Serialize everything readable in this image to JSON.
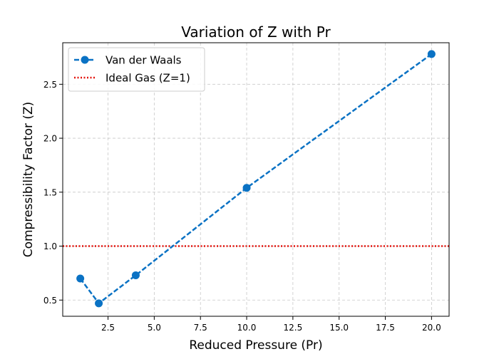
{
  "chart_data": {
    "type": "line",
    "title": "Variation of Z with Pr",
    "xlabel": "Reduced Pressure (Pr)",
    "ylabel": "Compressibility Factor (Z)",
    "xlim": [
      0.05,
      20.95
    ],
    "ylim": [
      0.35,
      2.885
    ],
    "xticks": [
      2.5,
      5.0,
      7.5,
      10.0,
      12.5,
      15.0,
      17.5,
      20.0
    ],
    "xtick_labels": [
      "2.5",
      "5.0",
      "7.5",
      "10.0",
      "12.5",
      "15.0",
      "17.5",
      "20.0"
    ],
    "yticks": [
      0.5,
      1.0,
      1.5,
      2.0,
      2.5
    ],
    "ytick_labels": [
      "0.5",
      "1.0",
      "1.5",
      "2.0",
      "2.5"
    ],
    "grid": true,
    "legend_position": "upper-left",
    "series": [
      {
        "name": "Van der Waals",
        "color": "#0a72c4",
        "style": "dashed",
        "marker": "circle",
        "x": [
          1,
          2,
          4,
          10,
          20
        ],
        "y": [
          0.7,
          0.47,
          0.73,
          1.54,
          2.78
        ]
      }
    ],
    "reference_lines": [
      {
        "name": "Ideal Gas (Z=1)",
        "orientation": "horizontal",
        "value": 1.0,
        "color": "#e3120b",
        "style": "dotted"
      }
    ]
  }
}
